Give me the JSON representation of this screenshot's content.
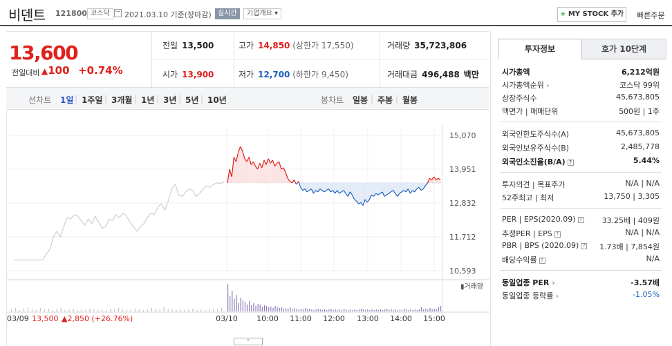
{
  "header": {
    "name": "비덴트",
    "code": "121800",
    "market": "코스닥",
    "date": "2021.03.10 기준(장마감)",
    "realtime": "실시간",
    "overview": "기업개요",
    "mystock_label": "MY STOCK 추가",
    "quick_order": "빠른주문"
  },
  "price": {
    "current": "13,600",
    "diff_label": "전일대비",
    "diff_value": "100",
    "diff_rate": "+0.74%",
    "prev_label": "전일",
    "prev": "13,500",
    "high_label": "고가",
    "high": "14,850",
    "upper_limit": "(상한가 17,550)",
    "volume_label": "거래량",
    "volume": "35,723,806",
    "open_label": "시가",
    "open": "13,900",
    "low_label": "저가",
    "low": "12,700",
    "lower_limit": "(하한가 9,450)",
    "amount_label": "거래대금",
    "amount": "496,488",
    "amount_unit": "백만"
  },
  "tabs": {
    "line_label": "선차트",
    "periods": [
      "1일",
      "1주일",
      "3개월",
      "1년",
      "3년",
      "5년",
      "10년"
    ],
    "active": "1일",
    "candle_label": "봉차트",
    "candles": [
      "일봉",
      "주봉",
      "월봉"
    ]
  },
  "chart_data": {
    "type": "line",
    "yticks": [
      "15,070",
      "13,951",
      "12,832",
      "11,712",
      "10,593"
    ],
    "ylim": [
      10593,
      15070
    ],
    "baseline": 13500,
    "xticks": [
      "03/10",
      "10:00",
      "11:00",
      "12:00",
      "13:00",
      "14:00",
      "15:00"
    ],
    "prev_day_label": "03/09",
    "prev_day_close": "13,500",
    "prev_day_change": "▲2,850 (+26.76%)",
    "volume_label": "거래량",
    "prev_day_series": [
      10950,
      11150,
      11300,
      11700,
      11900,
      11700,
      12050,
      12350,
      12300,
      12450,
      12400,
      12250,
      12100,
      12300,
      12150,
      12400,
      12200,
      12000,
      12050,
      12300,
      12250,
      12450,
      12350,
      12500,
      12400,
      12200,
      12050,
      11900,
      12050,
      12150,
      12350,
      12500,
      12450,
      12700,
      12800,
      12600,
      12900,
      13300,
      13450,
      13100,
      13050,
      13200,
      13300,
      13250,
      13050,
      13150,
      13300,
      13400,
      13350,
      13450,
      13500,
      13480,
      13520
    ],
    "today_series": [
      13500,
      13950,
      13700,
      14350,
      14200,
      14500,
      14700,
      14550,
      14300,
      14200,
      14350,
      14100,
      14200,
      14050,
      13950,
      14150,
      14000,
      14250,
      14100,
      14300,
      14150,
      14250,
      14050,
      14150,
      14200,
      13950,
      14000,
      13850,
      13650,
      13550,
      13500,
      13600,
      13450,
      13550,
      13350,
      13250,
      13300,
      13200,
      13250,
      13300,
      13150,
      13250,
      13200,
      13300,
      13250,
      13200,
      13250,
      13300,
      13200,
      13250,
      13150,
      13250,
      13150,
      13200,
      13250,
      13150,
      13050,
      13200,
      13100,
      12950,
      12900,
      12800,
      12850,
      12750,
      12950,
      12850,
      12950,
      13100,
      13050,
      13150,
      13100,
      13150,
      13200,
      13050,
      13100,
      13150,
      13200,
      13250,
      13150,
      13050,
      13150,
      13200,
      13250,
      13200,
      13300,
      13150,
      13250,
      13200,
      13300,
      13350,
      13250,
      13300,
      13400,
      13500,
      13650,
      13600,
      13700,
      13600,
      13650,
      13600
    ],
    "prev_volume": [
      3,
      5,
      2,
      4,
      6,
      3,
      2,
      5,
      3,
      4,
      2,
      3,
      5,
      2,
      3,
      4,
      2,
      3,
      2,
      4,
      3,
      2,
      3,
      2,
      4,
      3,
      5,
      3,
      2,
      3,
      4,
      3,
      2,
      3,
      5,
      4,
      3,
      6,
      4,
      3,
      2,
      3,
      2,
      3,
      4,
      2,
      3,
      2,
      3,
      4,
      3,
      5
    ],
    "today_volume": [
      40,
      22,
      30,
      18,
      24,
      12,
      20,
      16,
      14,
      10,
      15,
      9,
      12,
      8,
      11,
      10,
      7,
      9,
      8,
      6,
      7,
      5,
      8,
      6,
      5,
      6,
      4,
      5,
      4,
      6,
      3,
      5,
      4,
      3,
      4,
      3,
      5,
      3,
      4,
      3,
      2,
      3,
      4,
      3,
      2,
      3,
      2,
      3,
      4,
      2,
      3,
      2,
      3,
      2,
      4,
      3,
      2,
      3,
      2,
      3,
      2,
      3,
      4,
      3,
      2,
      3,
      2,
      3,
      2,
      3,
      2,
      3,
      2,
      3,
      4,
      2,
      3,
      2,
      3,
      2,
      3,
      2,
      4,
      3,
      2,
      3,
      2,
      3,
      2,
      3,
      6,
      3,
      4,
      3,
      5,
      3,
      4,
      3,
      6,
      8
    ]
  },
  "colors": {
    "up": "#e0201b",
    "down": "#1a5fbf",
    "prev": "#cfcfcf"
  },
  "right_panel": {
    "tab_active": "투자정보",
    "tab_other": "호가 10단계",
    "market_cap_label": "시가총액",
    "market_cap": "6,212억원",
    "rank_label": "시가총액순위",
    "rank": "코스닥 99위",
    "shares_label": "상장주식수",
    "shares": "45,673,805",
    "par_label": "액면가 | 매매단위",
    "par": "500원 | 1주",
    "foreign_limit_label": "외국인한도주식수(A)",
    "foreign_limit": "45,673,805",
    "foreign_hold_label": "외국인보유주식수(B)",
    "foreign_hold": "2,485,778",
    "foreign_rate_label": "외국인소진율(B/A)",
    "foreign_rate": "5.44%",
    "opinion_label": "투자의견 | 목표주가",
    "opinion": "N/A | N/A",
    "w52_label": "52주최고 | 최저",
    "w52": "13,750 | 3,305",
    "per_label": "PER | EPS(2020.09)",
    "per": "33.25배 | 409원",
    "est_per_label": "추정PER | EPS",
    "est_per": "N/A | N/A",
    "pbr_label": "PBR | BPS (2020.09)",
    "pbr": "1.73배 | 7,854원",
    "div_label": "배당수익률",
    "div": "N/A",
    "sector_per_label": "동일업종 PER",
    "sector_per": "-3.57배",
    "sector_rate_label": "동일업종 등락률",
    "sector_rate": "-1.05%"
  }
}
